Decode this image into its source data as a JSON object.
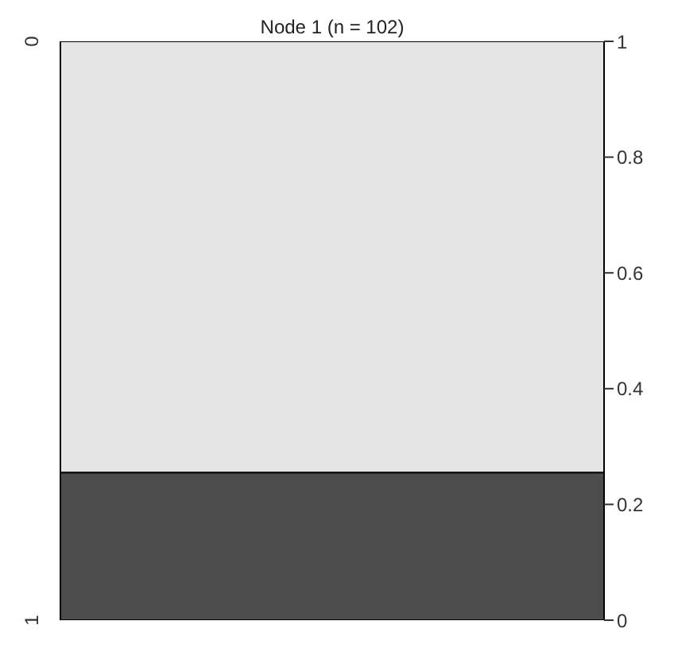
{
  "chart_data": {
    "type": "bar",
    "title": "Node 1 (n = 102)",
    "stacked": true,
    "categories": [
      null
    ],
    "series": [
      {
        "name": "1",
        "color": "#4d4d4d",
        "values": [
          0.255
        ]
      },
      {
        "name": "0",
        "color": "#e5e5e5",
        "values": [
          0.745
        ]
      }
    ],
    "ylim": [
      0,
      1
    ],
    "yticks": [
      0,
      0.2,
      0.4,
      0.6,
      0.8,
      1
    ],
    "grid": false
  }
}
